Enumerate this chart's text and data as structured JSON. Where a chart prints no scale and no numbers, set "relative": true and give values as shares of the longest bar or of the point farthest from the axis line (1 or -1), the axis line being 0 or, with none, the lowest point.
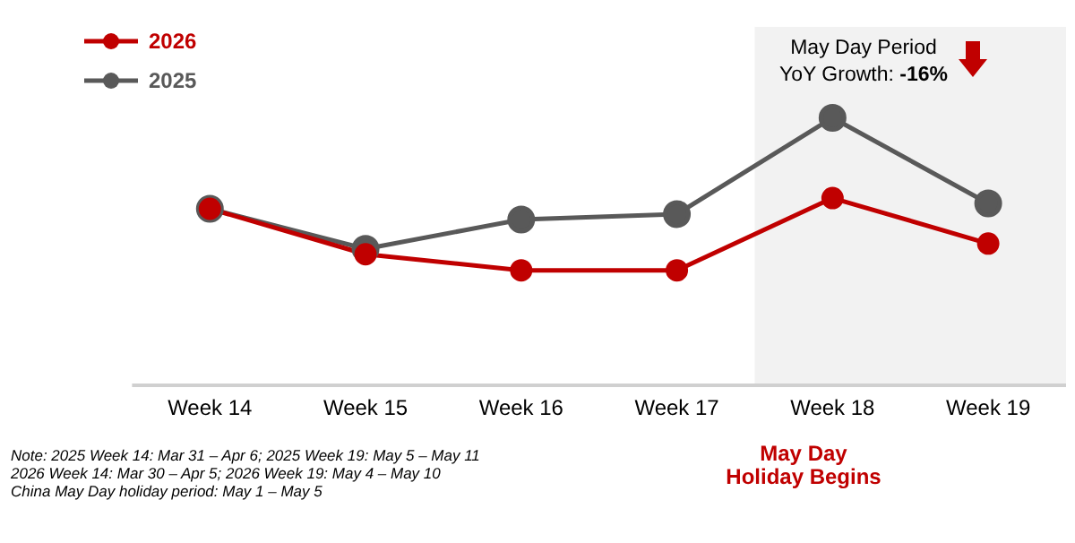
{
  "chart_data": {
    "type": "line",
    "relative": true,
    "categories": [
      "Week 14",
      "Week 15",
      "Week 16",
      "Week 17",
      "Week 18",
      "Week 19"
    ],
    "series": [
      {
        "name": "2026",
        "color": "#c00000",
        "values": [
          0.66,
          0.49,
          0.43,
          0.43,
          0.7,
          0.53
        ]
      },
      {
        "name": "2025",
        "color": "#595959",
        "values": [
          0.66,
          0.51,
          0.62,
          0.64,
          1,
          0.68
        ]
      }
    ],
    "bands": [
      {
        "axis": "x",
        "from": "Week 18",
        "to": "Week 19",
        "color": "#f2f2f2"
      }
    ],
    "annotations": [
      "May Day Period YoY Growth: -16%",
      "May Day Holiday Begins",
      "Note: 2025 Week 14: Mar 31 – Apr 6; 2025 Week 19: May 5 – May 11",
      "2026 Week 14: Mar 30 – Apr 5; 2026 Week 19: May 4 – May 10",
      "China May Day holiday period: May 1 – May 5"
    ],
    "legend": "top left",
    "marker": "circle",
    "line_style": "solid"
  }
}
